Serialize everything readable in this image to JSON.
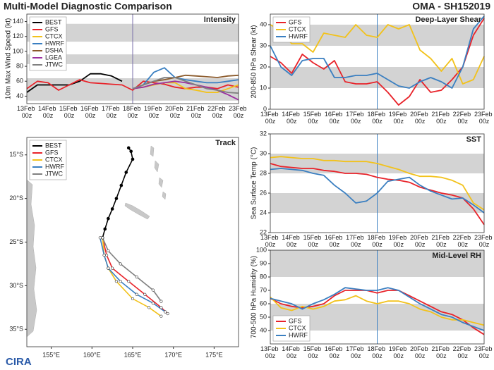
{
  "title": "Multi-Model Diagnostic Comparison",
  "storm": "OMA - SH152019",
  "logo": "CIRA",
  "chart_data": [
    {
      "type": "line",
      "title": "Intensity",
      "y_label": "10m Max Wind Speed (kt)",
      "categories": [
        "13Feb 00z",
        null,
        "14Feb 00z",
        null,
        "15Feb 00z",
        null,
        "16Feb 00z",
        null,
        "17Feb 00z",
        null,
        "18Feb 00z",
        null,
        "19Feb 00z",
        null,
        "20Feb 00z",
        null,
        "21Feb 00z",
        null,
        "22Feb 00z",
        null,
        "23Feb 00z"
      ],
      "forecast_start": "18Feb 00z",
      "forecast_color": "#7a6fa8",
      "ylim": [
        30,
        150
      ],
      "yticks": [
        40,
        60,
        80,
        100,
        120,
        140
      ],
      "bands": [
        [
          34,
          64
        ],
        [
          83,
          96
        ],
        [
          113,
          137
        ]
      ],
      "legend": "upper left",
      "series": [
        {
          "name": "BEST",
          "color": "#000000",
          "values": [
            45,
            55,
            55,
            55,
            55,
            60,
            70,
            70,
            67,
            60,
            null,
            null,
            null,
            null,
            null,
            null,
            null,
            null,
            null,
            null,
            null
          ]
        },
        {
          "name": "GFS",
          "color": "#e8232a",
          "values": [
            50,
            60,
            58,
            48,
            55,
            62,
            58,
            57,
            56,
            55,
            48,
            60,
            58,
            56,
            52,
            50,
            52,
            52,
            50,
            55,
            52
          ]
        },
        {
          "name": "CTCX",
          "color": "#f2c21b",
          "values": [
            null,
            null,
            null,
            null,
            null,
            null,
            null,
            null,
            null,
            null,
            50,
            52,
            55,
            58,
            58,
            50,
            48,
            45,
            45,
            50,
            55
          ]
        },
        {
          "name": "HWRF",
          "color": "#3a7fc1",
          "values": [
            null,
            null,
            null,
            null,
            null,
            null,
            null,
            null,
            null,
            null,
            50,
            55,
            72,
            78,
            65,
            62,
            60,
            58,
            58,
            60,
            62
          ]
        },
        {
          "name": "DSHA",
          "color": "#8b5a2b",
          "values": [
            null,
            null,
            null,
            null,
            null,
            null,
            null,
            null,
            null,
            null,
            50,
            55,
            60,
            62,
            65,
            68,
            67,
            66,
            65,
            67,
            68
          ]
        },
        {
          "name": "LGEA",
          "color": "#9b30a0",
          "values": [
            null,
            null,
            null,
            null,
            null,
            null,
            null,
            null,
            null,
            null,
            50,
            52,
            56,
            58,
            60,
            58,
            55,
            52,
            48,
            42,
            35
          ]
        },
        {
          "name": "JTWC",
          "color": "#808080",
          "values": [
            null,
            null,
            null,
            null,
            null,
            null,
            null,
            null,
            null,
            null,
            50,
            55,
            60,
            65,
            65,
            60,
            55,
            50,
            48,
            45,
            44
          ]
        }
      ]
    },
    {
      "type": "line",
      "title": "Deep-Layer Shear",
      "y_label": "200-850 hPa Shear (kt)",
      "categories": [
        "13Feb 00z",
        null,
        "14Feb 00z",
        null,
        "15Feb 00z",
        null,
        "16Feb 00z",
        null,
        "17Feb 00z",
        null,
        "18Feb 00z",
        null,
        "19Feb 00z",
        null,
        "20Feb 00z",
        null,
        "21Feb 00z",
        null,
        "22Feb 00z",
        null,
        "23Feb 00z"
      ],
      "forecast_start": "18Feb 00z",
      "forecast_color": "#3a7fc1",
      "ylim": [
        0,
        45
      ],
      "yticks": [
        0,
        10,
        20,
        30,
        40
      ],
      "bands": [
        [
          10,
          20
        ],
        [
          30,
          40
        ]
      ],
      "legend": "upper left",
      "series": [
        {
          "name": "GFS",
          "color": "#e8232a",
          "values": [
            25,
            22,
            17,
            26,
            22,
            19,
            23,
            13,
            12,
            12,
            13,
            8,
            2,
            6,
            14,
            8,
            9,
            14,
            20,
            35,
            43
          ]
        },
        {
          "name": "CTCX",
          "color": "#f2c21b",
          "values": [
            40,
            37,
            31,
            31,
            27,
            36,
            35,
            34,
            40,
            35,
            34,
            40,
            38,
            40,
            28,
            24,
            18,
            24,
            12,
            14,
            25
          ]
        },
        {
          "name": "HWRF",
          "color": "#3a7fc1",
          "values": [
            30,
            20,
            16,
            23,
            24,
            24,
            15,
            15,
            16,
            16,
            17,
            14,
            11,
            10,
            13,
            15,
            13,
            10,
            20,
            38,
            44
          ]
        }
      ]
    },
    {
      "type": "map",
      "title": "Track",
      "xlim": [
        152,
        178
      ],
      "ylim": [
        -37,
        -13
      ],
      "legend": "upper left",
      "xticks": [
        {
          "value": 155,
          "label": "155°E"
        },
        {
          "value": 160,
          "label": "160°E"
        },
        {
          "value": 165,
          "label": "165°E"
        },
        {
          "value": 170,
          "label": "170°E"
        },
        {
          "value": 175,
          "label": "175°E"
        }
      ],
      "yticks": [
        {
          "value": -15,
          "label": "15°S"
        },
        {
          "value": -20,
          "label": "20°S"
        },
        {
          "value": -25,
          "label": "25°S"
        },
        {
          "value": -30,
          "label": "30°S"
        },
        {
          "value": -35,
          "label": "35°S"
        }
      ],
      "series": [
        {
          "name": "BEST",
          "color": "#000000",
          "lon": [
            164.5,
            164.8,
            165,
            164.2,
            163.6,
            163,
            162.5,
            162,
            161.6,
            161.3
          ],
          "lat": [
            -14.2,
            -14.6,
            -15.5,
            -17,
            -18.5,
            -20,
            -21.2,
            -22.3,
            -23.5,
            -24.5
          ]
        },
        {
          "name": "GFS",
          "color": "#e8232a",
          "lon": [
            161.3,
            161.8,
            162.5,
            164.5,
            166.5,
            168.5,
            169.3
          ],
          "lat": [
            -24.5,
            -26.5,
            -28,
            -29.5,
            -31,
            -32.5,
            -33.2
          ]
        },
        {
          "name": "CTCX",
          "color": "#f2c21b",
          "lon": [
            161.3,
            161.5,
            162,
            163,
            165,
            167,
            168.5
          ],
          "lat": [
            -24.5,
            -26.5,
            -28,
            -29.5,
            -31.5,
            -32.5,
            -33.5
          ]
        },
        {
          "name": "HWRF",
          "color": "#3a7fc1",
          "lon": [
            161,
            161.5,
            162,
            163.5,
            165.5,
            167.5,
            169
          ],
          "lat": [
            -24.5,
            -26.5,
            -28,
            -29.5,
            -31,
            -32,
            -33
          ]
        },
        {
          "name": "JTWC",
          "color": "#808080",
          "lon": [
            161.3,
            162,
            163.5,
            165.5,
            167.5,
            168.5
          ],
          "lat": [
            -24.5,
            -26,
            -27.5,
            -29,
            -30.5,
            -31.8
          ]
        }
      ]
    },
    {
      "type": "line",
      "title": "SST",
      "y_label": "Sea Surface Temp (°C)",
      "categories": [
        "13Feb 00z",
        null,
        "14Feb 00z",
        null,
        "15Feb 00z",
        null,
        "16Feb 00z",
        null,
        "17Feb 00z",
        null,
        "18Feb 00z",
        null,
        "19Feb 00z",
        null,
        "20Feb 00z",
        null,
        "21Feb 00z",
        null,
        "22Feb 00z",
        null,
        "23Feb 00z"
      ],
      "forecast_start": "18Feb 00z",
      "forecast_color": "#3a7fc1",
      "ylim": [
        22,
        32
      ],
      "yticks": [
        22,
        24,
        26,
        28,
        30,
        32
      ],
      "bands": [
        [
          24,
          26
        ],
        [
          28,
          30
        ]
      ],
      "series": [
        {
          "name": "GFS",
          "color": "#e8232a",
          "values": [
            29,
            28.7,
            28.6,
            28.5,
            28.5,
            28.3,
            28.2,
            28,
            28,
            27.9,
            27.6,
            27.4,
            27.3,
            27.1,
            26.6,
            26.3,
            26,
            25.8,
            25.5,
            24.4,
            22.8
          ]
        },
        {
          "name": "CTCX",
          "color": "#f2c21b",
          "values": [
            29.6,
            29.7,
            29.6,
            29.5,
            29.5,
            29.3,
            29.3,
            29.2,
            29.2,
            29.2,
            29,
            28.7,
            28.4,
            28,
            27.7,
            27.7,
            27.6,
            27.3,
            26.8,
            25,
            24.3
          ]
        },
        {
          "name": "HWRF",
          "color": "#3a7fc1",
          "values": [
            28.4,
            28.5,
            28.4,
            28.3,
            28,
            27.8,
            26.8,
            26,
            25,
            25.2,
            26,
            27.2,
            27.4,
            27.6,
            26.8,
            26.2,
            25.8,
            25.4,
            25.5,
            24.8,
            24
          ]
        }
      ]
    },
    {
      "type": "line",
      "title": "Mid-Level RH",
      "y_label": "700-500 hPa Humidity (%)",
      "categories": [
        "13Feb 00z",
        null,
        "14Feb 00z",
        null,
        "15Feb 00z",
        null,
        "16Feb 00z",
        null,
        "17Feb 00z",
        null,
        "18Feb 00z",
        null,
        "19Feb 00z",
        null,
        "20Feb 00z",
        null,
        "21Feb 00z",
        null,
        "22Feb 00z",
        null,
        "23Feb 00z"
      ],
      "forecast_start": "18Feb 00z",
      "forecast_color": "#3a7fc1",
      "ylim": [
        30,
        100
      ],
      "yticks": [
        40,
        50,
        60,
        70,
        80,
        90,
        100
      ],
      "bands": [
        [
          40,
          60
        ],
        [
          80,
          100
        ]
      ],
      "legend": "lower left",
      "series": [
        {
          "name": "GFS",
          "color": "#e8232a",
          "values": [
            64,
            60,
            58,
            57,
            58,
            60,
            66,
            70,
            70,
            70,
            68,
            70,
            70,
            66,
            62,
            58,
            54,
            52,
            48,
            42,
            37
          ]
        },
        {
          "name": "CTCX",
          "color": "#f2c21b",
          "values": [
            65,
            57,
            55,
            58,
            56,
            58,
            62,
            63,
            66,
            62,
            60,
            62,
            62,
            60,
            56,
            54,
            50,
            48,
            48,
            46,
            44
          ]
        },
        {
          "name": "HWRF",
          "color": "#3a7fc1",
          "values": [
            64,
            62,
            60,
            56,
            60,
            63,
            67,
            72,
            71,
            70,
            70,
            72,
            70,
            65,
            60,
            56,
            52,
            50,
            46,
            43,
            40
          ]
        }
      ]
    }
  ]
}
